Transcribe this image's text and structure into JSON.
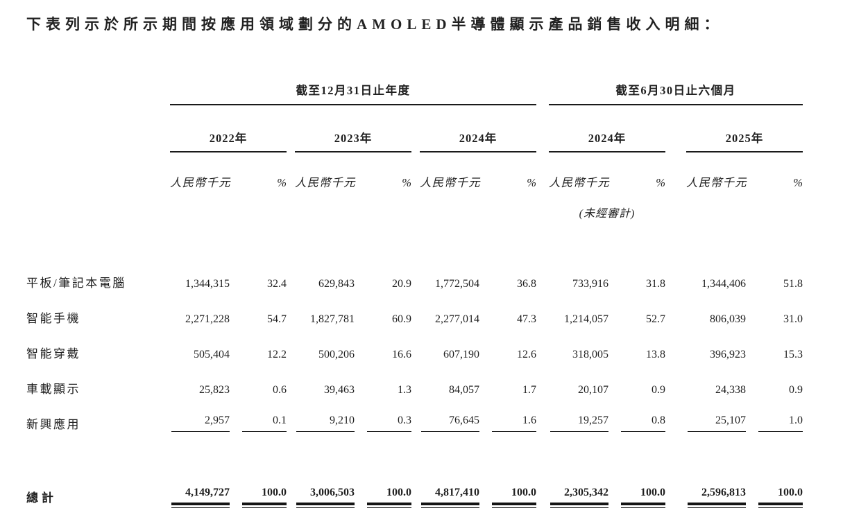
{
  "title": "下表列示於所示期間按應用領域劃分的AMOLED半導體顯示產品銷售收入明細：",
  "periods": [
    "截至12月31日止年度",
    "截至6月30日止六個月"
  ],
  "years": [
    "2022年",
    "2023年",
    "2024年",
    "2024年",
    "2025年"
  ],
  "unit_label": "人民幣千元",
  "pct_label": "%",
  "unaudited_note": "(未經審計)",
  "rows": [
    {
      "label": "平板/筆記本電腦",
      "cells": [
        "1,344,315",
        "32.4",
        "629,843",
        "20.9",
        "1,772,504",
        "36.8",
        "733,916",
        "31.8",
        "1,344,406",
        "51.8"
      ]
    },
    {
      "label": "智能手機",
      "cells": [
        "2,271,228",
        "54.7",
        "1,827,781",
        "60.9",
        "2,277,014",
        "47.3",
        "1,214,057",
        "52.7",
        "806,039",
        "31.0"
      ]
    },
    {
      "label": "智能穿戴",
      "cells": [
        "505,404",
        "12.2",
        "500,206",
        "16.6",
        "607,190",
        "12.6",
        "318,005",
        "13.8",
        "396,923",
        "15.3"
      ]
    },
    {
      "label": "車載顯示",
      "cells": [
        "25,823",
        "0.6",
        "39,463",
        "1.3",
        "84,057",
        "1.7",
        "20,107",
        "0.9",
        "24,338",
        "0.9"
      ]
    },
    {
      "label": "新興應用",
      "cells": [
        "2,957",
        "0.1",
        "9,210",
        "0.3",
        "76,645",
        "1.6",
        "19,257",
        "0.8",
        "25,107",
        "1.0"
      ]
    }
  ],
  "total": {
    "label": "總計",
    "cells": [
      "4,149,727",
      "100.0",
      "3,006,503",
      "100.0",
      "4,817,410",
      "100.0",
      "2,305,342",
      "100.0",
      "2,596,813",
      "100.0"
    ]
  },
  "colors": {
    "text": "#1f1f1f",
    "rule": "#1a1a1a",
    "background": "#ffffff"
  }
}
